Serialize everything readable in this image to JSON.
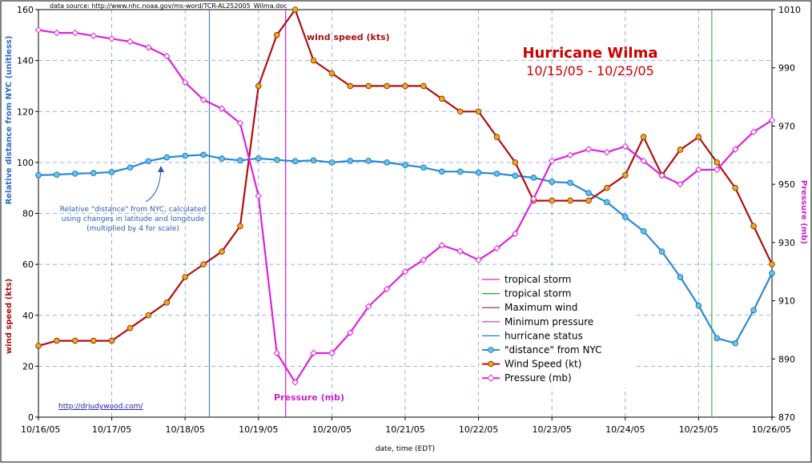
{
  "chart_data": {
    "type": "line",
    "title": "Hurricane Wilma",
    "subtitle": "10/15/05 - 10/25/05",
    "source_note": "data source: http://www.nhc.noaa.gov/ms-word/TCR-AL252005_Wilma.doc",
    "url_label": "http://drjudywood.com/",
    "xlabel": "date, time (EDT)",
    "ylabel_left_top": "Relative distance from NYC (unitless)",
    "ylabel_left_bottom": "wind speed (kts)",
    "ylabel_right": "Pressure (mb)",
    "x_tick_labels": [
      "10/16/05",
      "10/17/05",
      "10/18/05",
      "10/19/05",
      "10/20/05",
      "10/21/05",
      "10/22/05",
      "10/23/05",
      "10/24/05",
      "10/25/05",
      "10/26/05"
    ],
    "xlim": [
      0,
      10
    ],
    "ylim_left": [
      0,
      160
    ],
    "y_ticks_left": [
      0,
      20,
      40,
      60,
      80,
      100,
      120,
      140,
      160
    ],
    "ylim_right": [
      870,
      1010
    ],
    "y_ticks_right": [
      870,
      890,
      910,
      930,
      950,
      970,
      990,
      1010
    ],
    "grid": true,
    "legend_position": "bottom-right",
    "annotations": {
      "wind_label": "wind speed (kts)",
      "pressure_label": "Pressure (mb)",
      "distance_note": [
        "Relative \"distance\" from NYC, calculated",
        "using changes in latitude and longitude",
        "(multiplied by 4 for scale)"
      ]
    },
    "vertical_markers": [
      {
        "name": "tropical storm",
        "x": 9.18,
        "color": "#22aa22"
      },
      {
        "name": "Minimum pressure",
        "x": 3.37,
        "color": "#dd22dd"
      },
      {
        "name": "Maximum wind",
        "x": 3.37,
        "color": "#dd22dd"
      },
      {
        "name": "hurricane status",
        "x": 2.33,
        "color": "#3366cc"
      }
    ],
    "legend": [
      {
        "label": "tropical storm",
        "color": "#dd22dd",
        "kind": "line"
      },
      {
        "label": "tropical storm",
        "color": "#22aa22",
        "kind": "line"
      },
      {
        "label": "Maximum wind",
        "color": "#aa2222",
        "kind": "line"
      },
      {
        "label": "Minimum pressure",
        "color": "#dd22dd",
        "kind": "line"
      },
      {
        "label": "hurricane status",
        "color": "#3377cc",
        "kind": "line"
      },
      {
        "label": "\"distance\" from NYC",
        "color": "#2a8ad6",
        "kind": "marker"
      },
      {
        "label": "Wind Speed (kt)",
        "color": "#b01010",
        "kind": "marker"
      },
      {
        "label": "Pressure (mb)",
        "color": "#dd22dd",
        "kind": "marker"
      }
    ],
    "series": [
      {
        "name": "\"distance\" from NYC",
        "axis": "left",
        "color": "#2a8ad6",
        "x": [
          0,
          0.25,
          0.5,
          0.75,
          1,
          1.25,
          1.5,
          1.75,
          2,
          2.25,
          2.5,
          2.75,
          3,
          3.25,
          3.5,
          3.75,
          4,
          4.25,
          4.5,
          4.75,
          5,
          5.25,
          5.5,
          5.75,
          6,
          6.25,
          6.5,
          6.75,
          7,
          7.25,
          7.5,
          7.75,
          8,
          8.25,
          8.5,
          8.75,
          9,
          9.25,
          9.5,
          9.75,
          10
        ],
        "y": [
          95,
          95.2,
          95.6,
          95.8,
          96.2,
          98,
          100.5,
          102,
          102.6,
          103,
          101.5,
          100.8,
          101.6,
          101,
          100.5,
          100.8,
          100,
          100.6,
          100.6,
          100,
          99,
          98,
          96.4,
          96.4,
          96,
          95.6,
          94.8,
          94,
          92.4,
          92,
          88,
          84.4,
          78.6,
          73,
          65,
          55,
          43.8,
          31,
          29,
          42,
          56.5
        ]
      },
      {
        "name": "Wind Speed (kt)",
        "axis": "left",
        "color": "#b01010",
        "x": [
          0,
          0.25,
          0.5,
          0.75,
          1,
          1.25,
          1.5,
          1.75,
          2,
          2.25,
          2.5,
          2.75,
          3,
          3.25,
          3.5,
          3.75,
          4,
          4.25,
          4.5,
          4.75,
          5,
          5.25,
          5.5,
          5.75,
          6,
          6.25,
          6.5,
          6.75,
          7,
          7.25,
          7.5,
          7.75,
          8,
          8.25,
          8.5,
          8.75,
          9,
          9.25,
          9.5,
          9.75,
          10
        ],
        "y": [
          28,
          30,
          30,
          30,
          30,
          35,
          40,
          45,
          55,
          60,
          65,
          75,
          130,
          150,
          160,
          140,
          135,
          130,
          130,
          130,
          130,
          130,
          125,
          120,
          120,
          110,
          100,
          85,
          85,
          85,
          85,
          90,
          95,
          110,
          95,
          105,
          110,
          100,
          90,
          75,
          60
        ]
      },
      {
        "name": "Pressure (mb)",
        "axis": "right",
        "color": "#dd22dd",
        "x": [
          0,
          0.25,
          0.5,
          0.75,
          1,
          1.25,
          1.5,
          1.75,
          2,
          2.25,
          2.5,
          2.75,
          3,
          3.25,
          3.5,
          3.75,
          4,
          4.25,
          4.5,
          4.75,
          5,
          5.25,
          5.5,
          5.75,
          6,
          6.25,
          6.5,
          6.75,
          7,
          7.25,
          7.5,
          7.75,
          8,
          8.25,
          8.5,
          8.75,
          9,
          9.25,
          9.5,
          9.75,
          10
        ],
        "y": [
          1003,
          1002,
          1002,
          1001,
          1000,
          999,
          997,
          994,
          985,
          979,
          976,
          971,
          946,
          892,
          882,
          892,
          892,
          899,
          908,
          914,
          920,
          924,
          929,
          927,
          924,
          928,
          933,
          945,
          958,
          960,
          962,
          961,
          963,
          958,
          953,
          950,
          955,
          955,
          962,
          968,
          972
        ]
      }
    ]
  }
}
